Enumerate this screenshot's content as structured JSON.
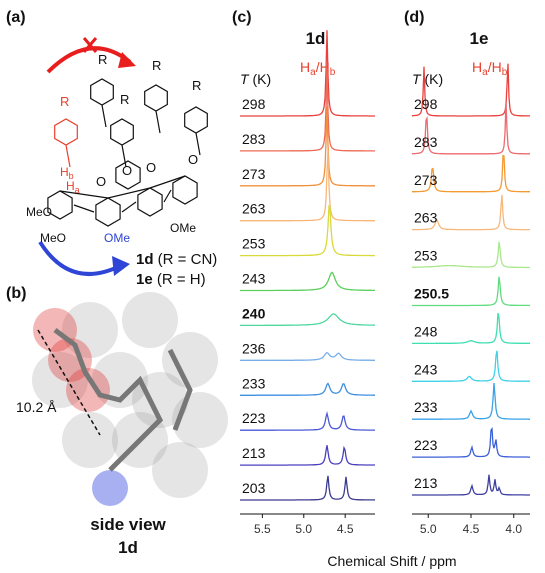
{
  "panel_a": {
    "label": "(a)",
    "r_labels": [
      "R",
      "R",
      "R",
      "R",
      "R"
    ],
    "hb": {
      "main": "H",
      "sub": "b"
    },
    "ha": {
      "main": "H",
      "sub": "a"
    },
    "oxygens": [
      "O",
      "O",
      "O",
      "O"
    ],
    "methoxy": [
      "MeO",
      "MeO",
      "OMe",
      "OMe"
    ],
    "compounds": [
      {
        "bold": "1d",
        "rest": " (R = CN)"
      },
      {
        "bold": "1e",
        "rest": " (R = H)"
      }
    ]
  },
  "panel_b": {
    "label": "(b)",
    "distance": "10.2 Å",
    "caption": [
      "side view",
      "1d"
    ]
  },
  "chart_data": [
    {
      "type": "nmr-stack",
      "label": "(c)",
      "compound": "1d",
      "signal": {
        "h1": "H",
        "s1": "a",
        "h2": "/H",
        "s2": "b"
      },
      "temp_header": {
        "italic": "T",
        "rest": " (K)"
      },
      "xlim": [
        5.77,
        4.14
      ],
      "xticks": [
        5.5,
        5.0,
        4.5
      ],
      "traces": [
        {
          "label": "298",
          "color": "#e8413c",
          "peaks": [
            {
              "x": 4.72,
              "h": 2.6,
              "w": 0.012
            }
          ]
        },
        {
          "label": "283",
          "color": "#ee6a55",
          "peaks": [
            {
              "x": 4.72,
              "h": 2.5,
              "w": 0.012
            }
          ]
        },
        {
          "label": "273",
          "color": "#f0903a",
          "peaks": [
            {
              "x": 4.72,
              "h": 2.4,
              "w": 0.013
            }
          ]
        },
        {
          "label": "263",
          "color": "#f7b77a",
          "peaks": [
            {
              "x": 4.71,
              "h": 2.2,
              "w": 0.014
            }
          ]
        },
        {
          "label": "253",
          "color": "#d9d93a",
          "peaks": [
            {
              "x": 4.69,
              "h": 1.6,
              "w": 0.02
            }
          ]
        },
        {
          "label": "243",
          "color": "#5ccf5c",
          "peaks": [
            {
              "x": 4.66,
              "h": 0.55,
              "w": 0.05
            }
          ]
        },
        {
          "label": "240",
          "bold": true,
          "color": "#4fd7a0",
          "peaks": [
            {
              "x": 4.64,
              "h": 0.35,
              "w": 0.08
            }
          ]
        },
        {
          "label": "236",
          "color": "#78aee8",
          "peaks": [
            {
              "x": 4.72,
              "h": 0.22,
              "w": 0.04
            },
            {
              "x": 4.58,
              "h": 0.2,
              "w": 0.04
            }
          ]
        },
        {
          "label": "233",
          "color": "#3e8fe0",
          "peaks": [
            {
              "x": 4.71,
              "h": 0.35,
              "w": 0.03
            },
            {
              "x": 4.52,
              "h": 0.35,
              "w": 0.03
            }
          ]
        },
        {
          "label": "223",
          "color": "#4b58d8",
          "peaks": [
            {
              "x": 4.72,
              "h": 0.5,
              "w": 0.022
            },
            {
              "x": 4.52,
              "h": 0.45,
              "w": 0.022
            }
          ]
        },
        {
          "label": "213",
          "color": "#4a3fc0",
          "peaks": [
            {
              "x": 4.72,
              "h": 0.6,
              "w": 0.018
            },
            {
              "x": 4.51,
              "h": 0.55,
              "w": 0.018
            }
          ]
        },
        {
          "label": "203",
          "color": "#3b3a8f",
          "peaks": [
            {
              "x": 4.71,
              "h": 0.75,
              "w": 0.015
            },
            {
              "x": 4.49,
              "h": 0.7,
              "w": 0.015
            }
          ]
        }
      ]
    },
    {
      "type": "nmr-stack",
      "label": "(d)",
      "compound": "1e",
      "signal": {
        "h1": "H",
        "s1": "a",
        "h2": "/H",
        "s2": "b"
      },
      "temp_header": {
        "italic": "T",
        "rest": " (K)"
      },
      "xlim": [
        5.19,
        3.81
      ],
      "xticks": [
        5.0,
        4.5,
        4.0
      ],
      "traces": [
        {
          "label": "298",
          "color": "#e8413c",
          "peaks": [
            {
              "x": 5.05,
              "h": 1.5,
              "w": 0.01
            },
            {
              "x": 4.07,
              "h": 1.7,
              "w": 0.01
            }
          ]
        },
        {
          "label": "283",
          "color": "#ec6a70",
          "peaks": [
            {
              "x": 5.02,
              "h": 1.3,
              "w": 0.012
            },
            {
              "x": 4.09,
              "h": 1.6,
              "w": 0.01
            }
          ]
        },
        {
          "label": "273",
          "color": "#f39a32",
          "peaks": [
            {
              "x": 4.95,
              "h": 0.8,
              "w": 0.015
            },
            {
              "x": 4.12,
              "h": 1.4,
              "w": 0.011
            }
          ]
        },
        {
          "label": "263",
          "color": "#f7b77a",
          "peaks": [
            {
              "x": 4.9,
              "h": 0.3,
              "w": 0.025
            },
            {
              "x": 4.14,
              "h": 1.1,
              "w": 0.012
            }
          ]
        },
        {
          "label": "253",
          "color": "#a8e88a",
          "peaks": [
            {
              "x": 4.75,
              "h": 0.06,
              "w": 0.2
            },
            {
              "x": 4.17,
              "h": 0.8,
              "w": 0.014
            }
          ]
        },
        {
          "label": "250.5",
          "bold": true,
          "color": "#5fdc7e",
          "peaks": [
            {
              "x": 4.17,
              "h": 0.9,
              "w": 0.014
            }
          ]
        },
        {
          "label": "248",
          "color": "#3ee0b0",
          "peaks": [
            {
              "x": 4.5,
              "h": 0.08,
              "w": 0.05
            },
            {
              "x": 4.18,
              "h": 1.0,
              "w": 0.014
            }
          ]
        },
        {
          "label": "243",
          "color": "#40d0e8",
          "peaks": [
            {
              "x": 4.52,
              "h": 0.15,
              "w": 0.03
            },
            {
              "x": 4.2,
              "h": 1.0,
              "w": 0.014
            }
          ]
        },
        {
          "label": "233",
          "color": "#3aa2e8",
          "peaks": [
            {
              "x": 4.5,
              "h": 0.25,
              "w": 0.02
            },
            {
              "x": 4.23,
              "h": 1.1,
              "w": 0.014
            }
          ]
        },
        {
          "label": "223",
          "color": "#3c5fd8",
          "peaks": [
            {
              "x": 4.49,
              "h": 0.3,
              "w": 0.015
            },
            {
              "x": 4.26,
              "h": 1.0,
              "w": 0.012
            },
            {
              "x": 4.21,
              "h": 0.5,
              "w": 0.012
            }
          ]
        },
        {
          "label": "213",
          "color": "#3f3fa0",
          "peaks": [
            {
              "x": 4.49,
              "h": 0.28,
              "w": 0.015
            },
            {
              "x": 4.29,
              "h": 0.6,
              "w": 0.012
            },
            {
              "x": 4.22,
              "h": 0.45,
              "w": 0.012
            },
            {
              "x": 4.17,
              "h": 0.2,
              "w": 0.012
            }
          ]
        }
      ]
    }
  ],
  "x_axis_label": "Chemical Shift / ppm"
}
